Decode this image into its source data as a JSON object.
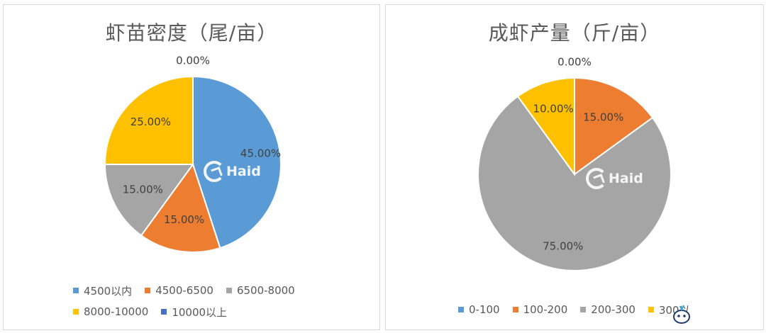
{
  "chart_data": [
    {
      "type": "pie",
      "title": "虾苗密度（尾/亩）",
      "categories": [
        "4500以内",
        "4500-6500",
        "6500-8000",
        "8000-10000",
        "10000以上"
      ],
      "values": [
        45,
        15,
        15,
        25,
        0
      ],
      "data_labels": [
        "45.00%",
        "15.00%",
        "15.00%",
        "25.00%",
        "0.00%"
      ],
      "colors": [
        "#5b9bd5",
        "#ed7d31",
        "#a5a5a5",
        "#ffc000",
        "#4472c4"
      ],
      "legend_position": "bottom"
    },
    {
      "type": "pie",
      "title": "成虾产量（斤/亩）",
      "categories": [
        "0-100",
        "100-200",
        "200-300",
        "300以"
      ],
      "values": [
        0,
        15,
        75,
        10
      ],
      "data_labels": [
        "0.00%",
        "15.00%",
        "75.00%",
        "10.00%"
      ],
      "colors": [
        "#5b9bd5",
        "#ed7d31",
        "#a5a5a5",
        "#ffc000"
      ],
      "legend_position": "bottom"
    }
  ],
  "watermark": {
    "text": "Haid",
    "icon": "haid-logo-icon"
  },
  "corner_icon": "cartoon-mascot-icon"
}
